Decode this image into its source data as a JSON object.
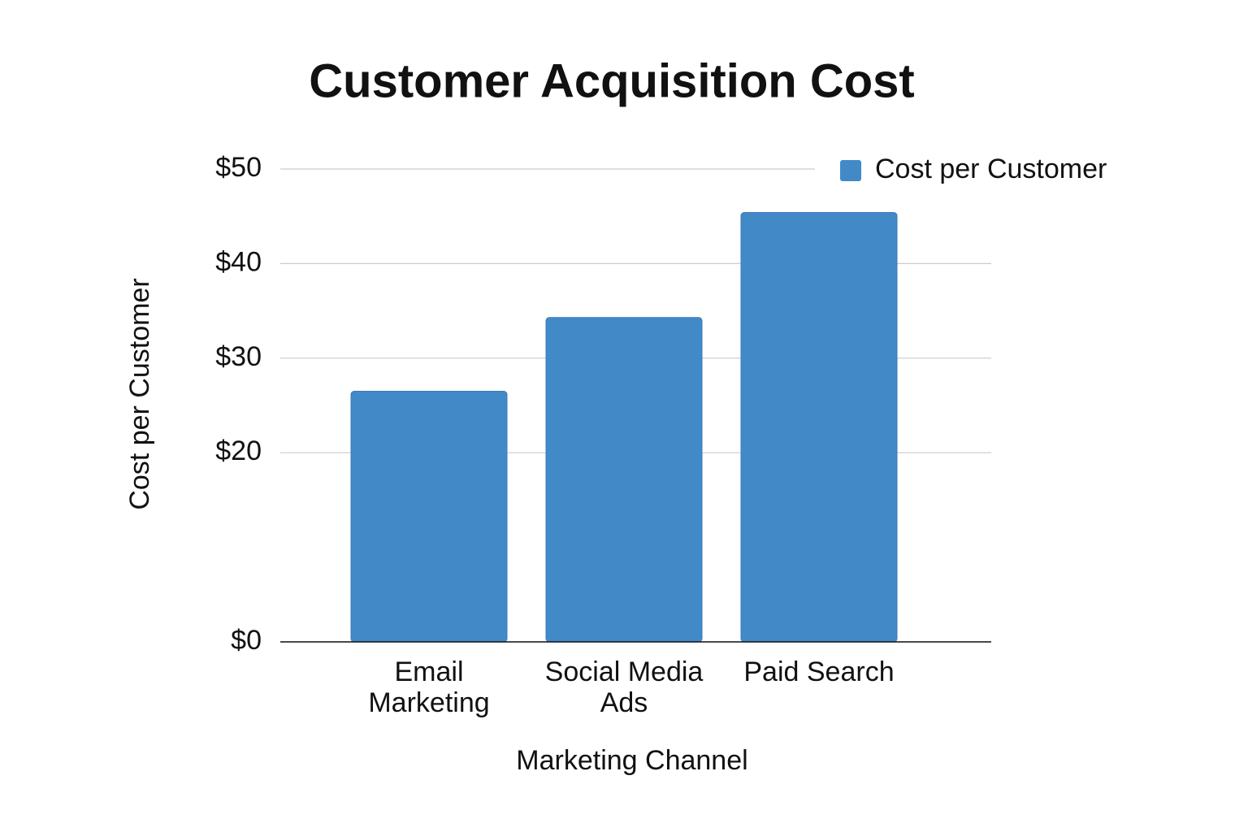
{
  "chart_data": {
    "type": "bar",
    "title": "Customer Acquisition Cost",
    "x_label": "Marketing Channel",
    "y_label": "Cost per Customer",
    "categories": [
      "Email Marketing",
      "Social Media Ads",
      "Paid Search"
    ],
    "series": [
      {
        "name": "Cost per Customer",
        "color": "#4289c7",
        "values": [
          26.5,
          34.3,
          45.4
        ]
      }
    ],
    "ylim": [
      0,
      50
    ],
    "yticks": [
      {
        "value": 0,
        "label": "$0"
      },
      {
        "value": 20,
        "label": "$20"
      },
      {
        "value": 30,
        "label": "$30"
      },
      {
        "value": 40,
        "label": "$40"
      },
      {
        "value": 50,
        "label": "$50"
      }
    ],
    "grid": true,
    "legend": "top-right"
  }
}
